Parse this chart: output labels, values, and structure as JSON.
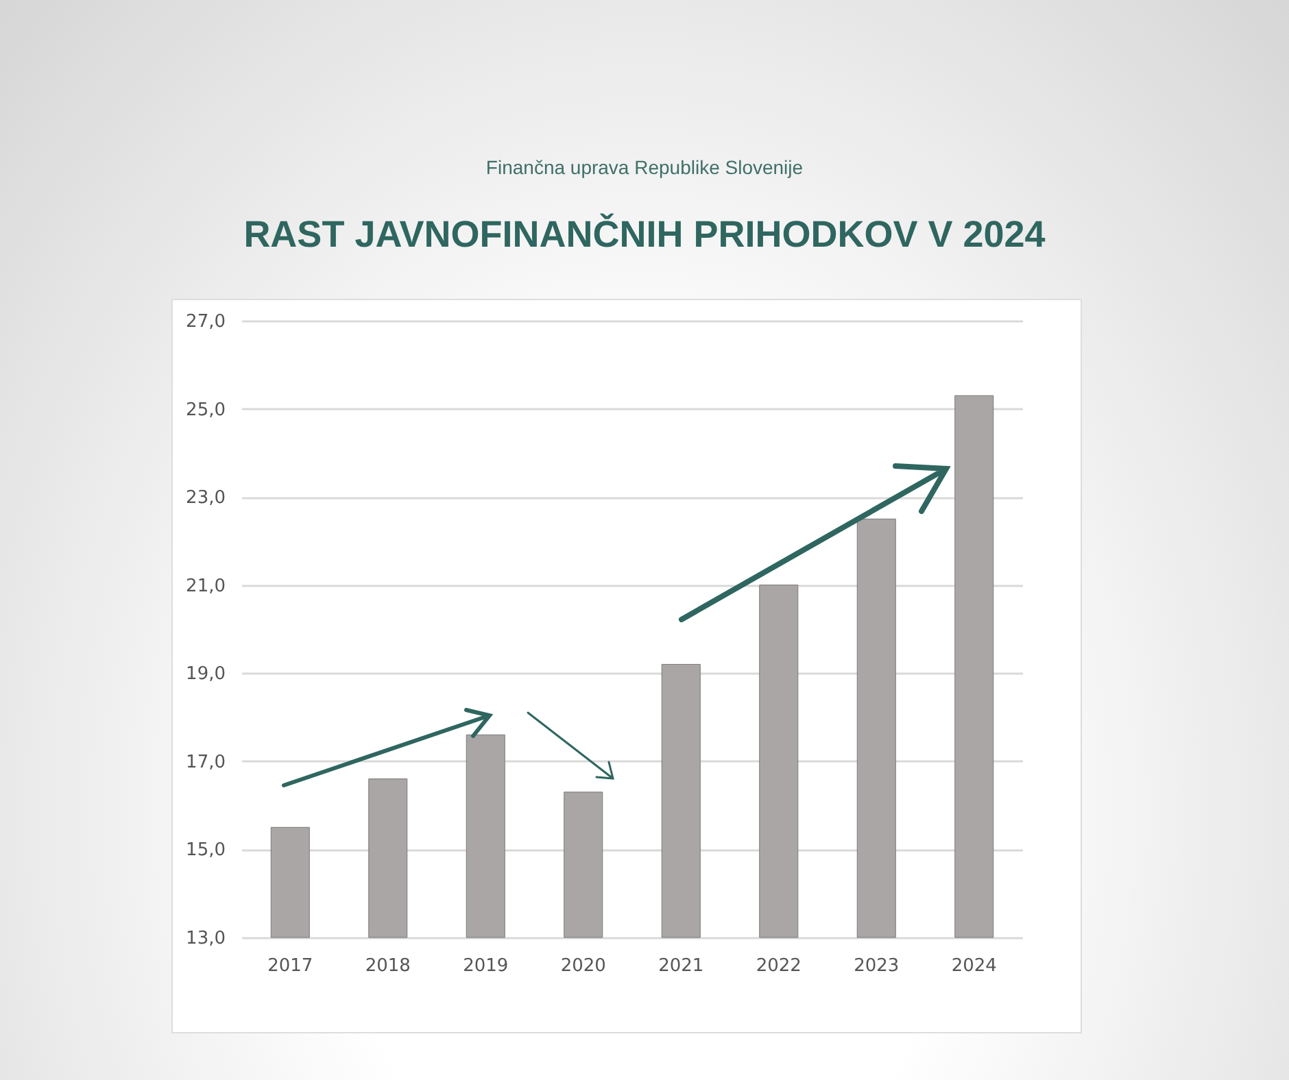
{
  "chart_data": {
    "type": "bar",
    "title": "RAST JAVNOFINANČNIH PRIHODKOV V 2024",
    "annotations": [
      "Finančna uprava Republike Slovenije"
    ],
    "categories": [
      "2017",
      "2018",
      "2019",
      "2020",
      "2021",
      "2022",
      "2023",
      "2024"
    ],
    "values": [
      15.5,
      16.6,
      17.6,
      16.3,
      19.2,
      21.0,
      22.5,
      25.3
    ],
    "color": "#aaa6a6",
    "ylim": [
      13,
      27
    ],
    "yticks": [
      {
        "value": 13,
        "label": "13,0"
      },
      {
        "value": 15,
        "label": "15,0"
      },
      {
        "value": 17,
        "label": "17,0"
      },
      {
        "value": 19,
        "label": "19,0"
      },
      {
        "value": 21,
        "label": "21,0"
      },
      {
        "value": 23,
        "label": "23,0"
      },
      {
        "value": 25,
        "label": "25,0"
      },
      {
        "value": 27,
        "label": "27,0"
      }
    ],
    "grid": "y"
  }
}
